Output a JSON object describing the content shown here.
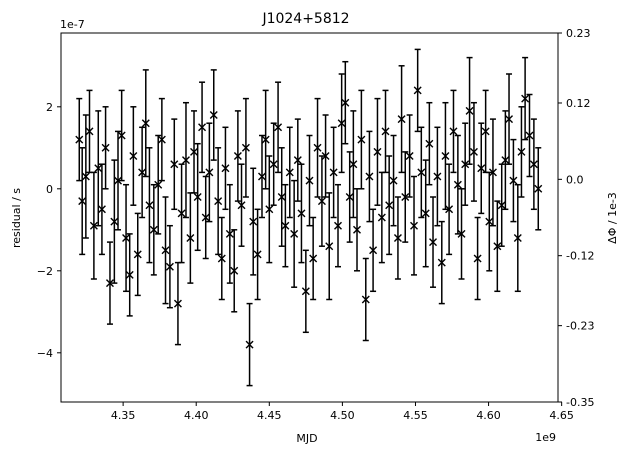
{
  "chart_data": {
    "type": "scatter",
    "title": "J1024+5812",
    "xlabel": "MJD",
    "ylabel": "residual / s",
    "y2label": "ΔΦ / 1e-3",
    "x_offset_label": "1e9",
    "y_offset_label": "1e-7",
    "xlim": [
      4.3075,
      4.6475
    ],
    "ylim": [
      -5.2,
      3.8
    ],
    "y2lim": [
      -0.35,
      0.23
    ],
    "xticks": [
      4.35,
      4.4,
      4.45,
      4.5,
      4.55,
      4.6,
      4.65
    ],
    "xtick_labels": [
      "4.35",
      "4.40",
      "4.45",
      "4.50",
      "4.55",
      "4.60",
      "4.65"
    ],
    "yticks": [
      -4,
      -2,
      0,
      2
    ],
    "ytick_labels": [
      "−4",
      "−2",
      "0",
      "2"
    ],
    "y2ticks": [
      -0.35,
      -0.23,
      -0.12,
      0.0,
      0.12,
      0.23
    ],
    "y2tick_labels": [
      "-0.35",
      "-0.23",
      "-0.12",
      "0.0",
      "0.12",
      "0.23"
    ],
    "marker": "x",
    "color": "#000000",
    "grid": false,
    "points": {
      "x": [
        4.32,
        4.322,
        4.3245,
        4.327,
        4.33,
        4.333,
        4.3355,
        4.338,
        4.341,
        4.344,
        4.3465,
        4.349,
        4.352,
        4.3545,
        4.357,
        4.36,
        4.363,
        4.3655,
        4.368,
        4.371,
        4.374,
        4.3765,
        4.379,
        4.382,
        4.385,
        4.3875,
        4.39,
        4.393,
        4.396,
        4.3985,
        4.401,
        4.404,
        4.4065,
        4.409,
        4.412,
        4.415,
        4.4175,
        4.42,
        4.423,
        4.426,
        4.4285,
        4.431,
        4.434,
        4.4365,
        4.439,
        4.442,
        4.445,
        4.4475,
        4.45,
        4.453,
        4.456,
        4.4585,
        4.461,
        4.464,
        4.467,
        4.4695,
        4.472,
        4.475,
        4.4775,
        4.48,
        4.483,
        4.486,
        4.4885,
        4.491,
        4.494,
        4.497,
        4.4995,
        4.502,
        4.505,
        4.5075,
        4.51,
        4.513,
        4.516,
        4.5185,
        4.521,
        4.524,
        4.527,
        4.5295,
        4.532,
        4.535,
        4.538,
        4.5405,
        4.543,
        4.546,
        4.549,
        4.5515,
        4.554,
        4.557,
        4.5595,
        4.562,
        4.565,
        4.568,
        4.5705,
        4.573,
        4.576,
        4.579,
        4.5815,
        4.584,
        4.587,
        4.59,
        4.5925,
        4.595,
        4.598,
        4.6005,
        4.603,
        4.606,
        4.609,
        4.6115,
        4.614,
        4.617,
        4.62,
        4.6225,
        4.625,
        4.628,
        4.631,
        4.634
      ],
      "y": [
        1.2,
        -0.3,
        0.3,
        1.4,
        -0.9,
        0.5,
        -0.5,
        1.0,
        -2.3,
        -0.8,
        0.2,
        1.3,
        -1.2,
        -2.1,
        0.8,
        -1.6,
        0.4,
        1.6,
        -0.4,
        -1.0,
        0.1,
        1.2,
        -1.5,
        -1.9,
        0.6,
        -2.8,
        -0.6,
        0.7,
        -1.2,
        0.9,
        -0.2,
        1.5,
        -0.7,
        0.4,
        1.8,
        -0.3,
        -1.7,
        0.5,
        -1.1,
        -2.0,
        0.8,
        -0.4,
        1.0,
        -3.8,
        -0.8,
        -1.6,
        0.3,
        1.2,
        -0.5,
        0.6,
        1.5,
        -0.2,
        -0.9,
        0.4,
        -1.1,
        0.7,
        -0.6,
        -2.5,
        0.2,
        -1.7,
        1.0,
        -0.3,
        0.8,
        -1.4,
        0.4,
        -0.9,
        1.6,
        2.1,
        -0.2,
        0.6,
        -1.0,
        1.2,
        -2.7,
        0.3,
        -1.5,
        0.9,
        -0.7,
        1.4,
        -0.4,
        0.2,
        -1.2,
        1.7,
        -0.2,
        0.8,
        -0.9,
        2.4,
        0.4,
        -0.6,
        1.1,
        -1.3,
        0.3,
        -1.8,
        0.8,
        -0.5,
        1.4,
        0.1,
        -1.1,
        0.6,
        1.9,
        0.9,
        -1.7,
        0.5,
        1.4,
        -0.8,
        0.4,
        -1.4,
        -0.4,
        0.7,
        1.7,
        0.2,
        -1.2,
        0.9,
        2.2,
        1.3,
        0.6,
        0.0
      ],
      "yerr": [
        1.0,
        1.3,
        1.5,
        1.0,
        1.3,
        1.4,
        1.1,
        1.0,
        1.0,
        1.5,
        1.2,
        1.1,
        1.3,
        1.0,
        1.2,
        1.0,
        1.1,
        1.3,
        1.4,
        1.1,
        1.2,
        1.0,
        1.3,
        1.0,
        1.1,
        1.0,
        1.2,
        1.4,
        1.1,
        1.0,
        1.3,
        1.1,
        1.0,
        1.2,
        1.1,
        1.3,
        1.0,
        1.0,
        1.2,
        1.0,
        1.1,
        1.0,
        1.2,
        1.0,
        1.3,
        1.1,
        1.0,
        1.2,
        1.3,
        1.0,
        1.1,
        1.2,
        1.0,
        1.1,
        1.3,
        1.0,
        1.2,
        1.0,
        1.1,
        1.0,
        1.2,
        1.1,
        1.0,
        1.3,
        1.1,
        1.0,
        1.2,
        1.0,
        1.1,
        1.3,
        1.0,
        1.2,
        1.0,
        1.1,
        1.0,
        1.3,
        1.1,
        1.0,
        1.2,
        1.1,
        1.0,
        1.3,
        1.1,
        1.0,
        1.2,
        1.0,
        1.1,
        1.3,
        1.0,
        1.1,
        1.2,
        1.0,
        1.3,
        1.1,
        1.0,
        1.2,
        1.1,
        1.0,
        1.3,
        1.2,
        1.0,
        1.1,
        1.0,
        1.2,
        1.3,
        1.1,
        1.0,
        1.2,
        1.1,
        1.0,
        1.3,
        1.1,
        1.0,
        1.0,
        1.1,
        1.0
      ]
    }
  }
}
